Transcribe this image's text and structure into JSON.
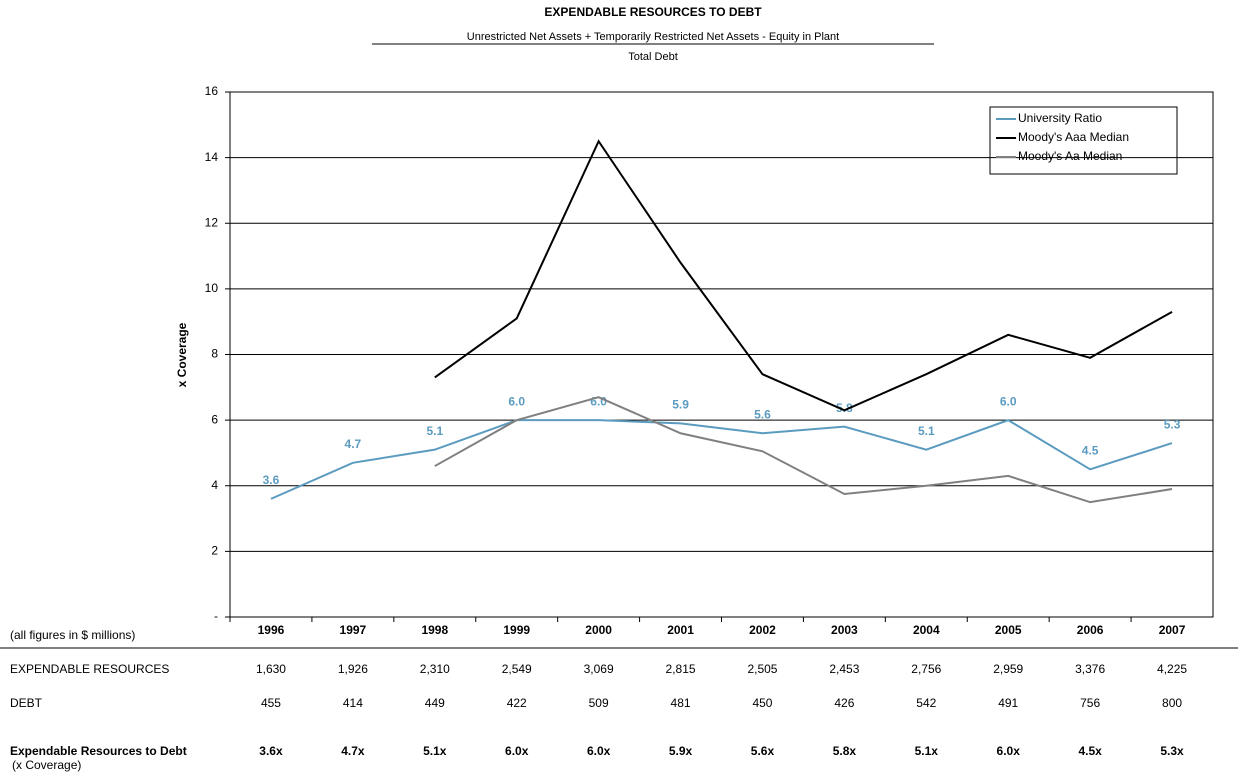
{
  "chart_data": {
    "type": "line",
    "title": "EXPENDABLE RESOURCES TO DEBT",
    "subtitle": "Unrestricted  Net Assets + Temporarily Restricted Net Assets - Equity in Plant",
    "subtitle_denominator": "Total Debt",
    "y_label": "x Coverage",
    "categories": [
      "1996",
      "1997",
      "1998",
      "1999",
      "2000",
      "2001",
      "2002",
      "2003",
      "2004",
      "2005",
      "2006",
      "2007"
    ],
    "series": [
      {
        "name": "University Ratio",
        "color": "#5b9bc0",
        "values": [
          3.6,
          4.7,
          5.1,
          6.0,
          6.0,
          5.9,
          5.6,
          5.8,
          5.1,
          6.0,
          4.5,
          5.3
        ],
        "value_labels": [
          "3.6",
          "4.7",
          "5.1",
          "6.0",
          "6.0",
          "5.9",
          "5.6",
          "5.8",
          "5.1",
          "6.0",
          "4.5",
          "5.3"
        ]
      },
      {
        "name": "Moody's Aaa Median",
        "color": "#000000",
        "values": [
          null,
          null,
          7.3,
          9.1,
          14.5,
          10.8,
          7.4,
          6.3,
          7.4,
          8.6,
          7.9,
          9.3
        ]
      },
      {
        "name": "Moody's Aa Median",
        "color": "#808080",
        "values": [
          null,
          null,
          4.6,
          6.0,
          6.7,
          5.6,
          5.05,
          3.75,
          4.0,
          4.3,
          3.5,
          3.9
        ]
      }
    ],
    "ylim": [
      0,
      16
    ],
    "yticks": [
      {
        "value": 0,
        "label": "-"
      },
      2,
      4,
      6,
      8,
      10,
      12,
      14,
      16
    ],
    "grid": true,
    "legend": "top-right"
  },
  "table": {
    "note": "(all figures in $ millions)",
    "rows": [
      {
        "label": "EXPENDABLE RESOURCES",
        "cells": [
          "1,630",
          "1,926",
          "2,310",
          "2,549",
          "3,069",
          "2,815",
          "2,505",
          "2,453",
          "2,756",
          "2,959",
          "3,376",
          "4,225"
        ]
      },
      {
        "label": "DEBT",
        "cells": [
          "455",
          "414",
          "449",
          "422",
          "509",
          "481",
          "450",
          "426",
          "542",
          "491",
          "756",
          "800"
        ]
      },
      {
        "label": "Expendable Resources to Debt",
        "sublabel": "(x Coverage)",
        "cells": [
          "3.6x",
          "4.7x",
          "5.1x",
          "6.0x",
          "6.0x",
          "5.9x",
          "5.6x",
          "5.8x",
          "5.1x",
          "6.0x",
          "4.5x",
          "5.3x"
        ]
      }
    ]
  }
}
